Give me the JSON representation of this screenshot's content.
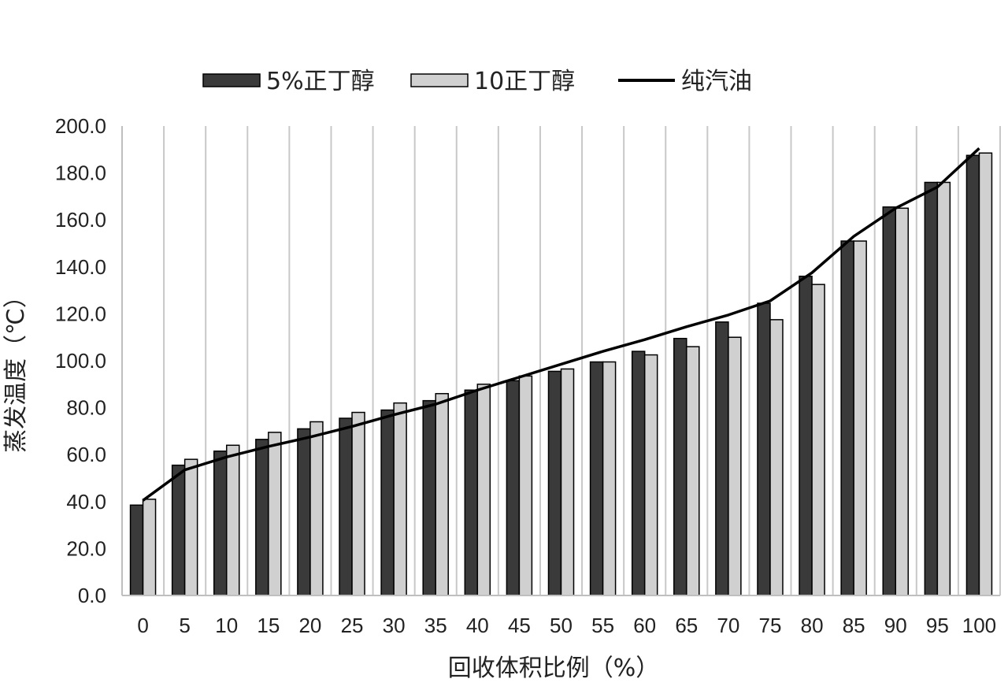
{
  "chart_data": {
    "type": "bar",
    "categories": [
      "0",
      "5",
      "10",
      "15",
      "20",
      "25",
      "30",
      "35",
      "40",
      "45",
      "50",
      "55",
      "60",
      "65",
      "70",
      "75",
      "80",
      "85",
      "90",
      "95",
      "100"
    ],
    "series": [
      {
        "name": "5%正丁醇",
        "kind": "bar",
        "color": "#3a3a3a",
        "values": [
          38.5,
          55.5,
          61.5,
          66.5,
          71,
          75.5,
          79,
          83,
          87.5,
          91.5,
          95.5,
          99.5,
          104,
          109.5,
          116.5,
          124.5,
          136,
          151,
          165.5,
          176,
          187.5
        ]
      },
      {
        "name": "10正丁醇",
        "kind": "bar",
        "color": "#d0d0d0",
        "values": [
          41,
          58,
          64,
          69.5,
          74,
          78,
          82,
          86,
          90,
          93.5,
          96.5,
          99.5,
          102.5,
          106,
          110,
          117.5,
          132.5,
          151,
          165,
          176,
          188.5
        ]
      },
      {
        "name": "纯汽油",
        "kind": "line",
        "color": "#000000",
        "values": [
          40.5,
          53.5,
          59,
          63.5,
          67.5,
          72,
          77,
          81.5,
          87.5,
          93,
          98.5,
          104,
          109,
          114.5,
          119.5,
          125.5,
          137.5,
          153,
          165,
          174,
          190.5
        ]
      }
    ],
    "xlabel": "回收体积比例（%）",
    "ylabel": "蒸发温度（℃）",
    "ylim": [
      0,
      200
    ],
    "yticks": [
      "0.0",
      "20.0",
      "40.0",
      "60.0",
      "80.0",
      "100.0",
      "120.0",
      "140.0",
      "160.0",
      "180.0",
      "200.0"
    ],
    "grid": "vertical",
    "legend_position": "top"
  }
}
